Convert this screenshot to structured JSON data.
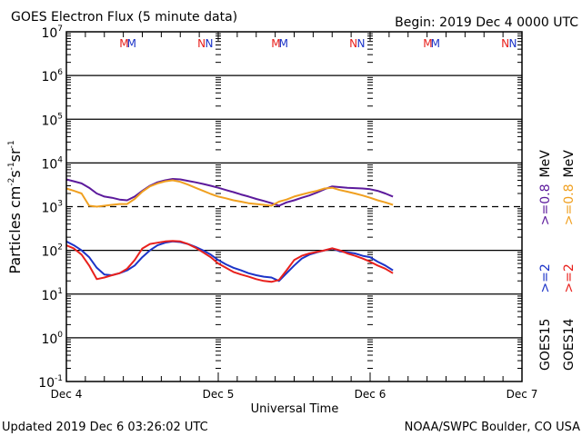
{
  "chart_data": {
    "type": "line",
    "title": "GOES Electron Flux (5 minute data)",
    "begin_label": "Begin: 2019 Dec 4 0000 UTC",
    "xlabel": "Universal Time",
    "ylabel": "Particles cm⁻²s⁻¹sr⁻¹",
    "ylabel_parts": {
      "base": "Particles cm",
      "e1": "-2",
      "s": "s",
      "e2": "-1",
      "sr": "sr",
      "e3": "-1"
    },
    "yscale": "log",
    "ylim": [
      0.1,
      10000000
    ],
    "xlim_days": [
      0,
      3
    ],
    "y_ticks": [
      {
        "base": "10",
        "exp": "7",
        "value": 10000000
      },
      {
        "base": "10",
        "exp": "6",
        "value": 1000000
      },
      {
        "base": "10",
        "exp": "5",
        "value": 100000
      },
      {
        "base": "10",
        "exp": "4",
        "value": 10000
      },
      {
        "base": "10",
        "exp": "3",
        "value": 1000
      },
      {
        "base": "10",
        "exp": "2",
        "value": 100
      },
      {
        "base": "10",
        "exp": "1",
        "value": 10
      },
      {
        "base": "10",
        "exp": "0",
        "value": 1
      },
      {
        "base": "10",
        "exp": "-1",
        "value": 0.1
      }
    ],
    "x_ticks": [
      {
        "label": "Dec 4",
        "day": 0
      },
      {
        "label": "Dec 5",
        "day": 1
      },
      {
        "label": "Dec 6",
        "day": 2
      },
      {
        "label": "Dec 7",
        "day": 3
      }
    ],
    "threshold_dashed": 1000,
    "grid_solid": [
      10000,
      100,
      10,
      1
    ],
    "markers": [
      {
        "label": "M",
        "day": 0.38,
        "color": "#e8201c"
      },
      {
        "label": "M",
        "day": 0.43,
        "color": "#1c34c8"
      },
      {
        "label": "N",
        "day": 0.89,
        "color": "#e8201c"
      },
      {
        "label": "N",
        "day": 0.94,
        "color": "#1c34c8"
      },
      {
        "label": "M",
        "day": 1.38,
        "color": "#e8201c"
      },
      {
        "label": "M",
        "day": 1.43,
        "color": "#1c34c8"
      },
      {
        "label": "N",
        "day": 1.89,
        "color": "#e8201c"
      },
      {
        "label": "N",
        "day": 1.94,
        "color": "#1c34c8"
      },
      {
        "label": "M",
        "day": 2.38,
        "color": "#e8201c"
      },
      {
        "label": "M",
        "day": 2.43,
        "color": "#1c34c8"
      },
      {
        "label": "N",
        "day": 2.89,
        "color": "#e8201c"
      },
      {
        "label": "N",
        "day": 2.94,
        "color": "#1c34c8"
      }
    ],
    "series": [
      {
        "name": "GOES15 >=0.8 MeV",
        "color": "#5c1a9c",
        "x": [
          0,
          0.05,
          0.1,
          0.15,
          0.2,
          0.25,
          0.3,
          0.35,
          0.4,
          0.45,
          0.5,
          0.55,
          0.6,
          0.65,
          0.7,
          0.75,
          0.8,
          0.85,
          0.9,
          0.95,
          1.0,
          1.05,
          1.1,
          1.15,
          1.2,
          1.25,
          1.3,
          1.35,
          1.4,
          1.45,
          1.5,
          1.55,
          1.6,
          1.65,
          1.7,
          1.75,
          1.8,
          1.85,
          1.9,
          1.95,
          2.0,
          2.05,
          2.1,
          2.15
        ],
        "y": [
          4200,
          3800,
          3400,
          2700,
          2000,
          1700,
          1600,
          1450,
          1400,
          1700,
          2300,
          3000,
          3600,
          4000,
          4300,
          4200,
          3900,
          3600,
          3300,
          3000,
          2700,
          2400,
          2150,
          1900,
          1700,
          1500,
          1350,
          1200,
          1050,
          1250,
          1400,
          1600,
          1800,
          2100,
          2500,
          2900,
          2800,
          2700,
          2650,
          2600,
          2500,
          2300,
          2000,
          1700
        ]
      },
      {
        "name": "GOES14 >=0.8 MeV",
        "color": "#f0a020",
        "x": [
          0,
          0.05,
          0.1,
          0.15,
          0.2,
          0.25,
          0.3,
          0.35,
          0.4,
          0.45,
          0.5,
          0.55,
          0.6,
          0.65,
          0.7,
          0.75,
          0.8,
          0.85,
          0.9,
          0.95,
          1.0,
          1.05,
          1.1,
          1.15,
          1.2,
          1.25,
          1.3,
          1.35,
          1.4,
          1.45,
          1.5,
          1.55,
          1.6,
          1.65,
          1.7,
          1.75,
          1.8,
          1.85,
          1.9,
          1.95,
          2.0,
          2.05,
          2.1,
          2.15
        ],
        "y": [
          2600,
          2300,
          2000,
          1050,
          1000,
          1050,
          1100,
          1150,
          1150,
          1500,
          2200,
          2900,
          3400,
          3800,
          4000,
          3700,
          3200,
          2700,
          2300,
          1950,
          1700,
          1550,
          1400,
          1300,
          1200,
          1150,
          1100,
          1050,
          1300,
          1450,
          1700,
          1900,
          2100,
          2300,
          2600,
          2700,
          2400,
          2200,
          2000,
          1800,
          1600,
          1400,
          1250,
          1100
        ]
      },
      {
        "name": "GOES15 >=2 MeV",
        "color": "#1c34c8",
        "x": [
          0,
          0.05,
          0.1,
          0.15,
          0.2,
          0.25,
          0.3,
          0.35,
          0.4,
          0.45,
          0.5,
          0.55,
          0.6,
          0.65,
          0.7,
          0.75,
          0.8,
          0.85,
          0.9,
          0.95,
          1.0,
          1.05,
          1.1,
          1.15,
          1.2,
          1.25,
          1.3,
          1.35,
          1.4,
          1.45,
          1.5,
          1.55,
          1.6,
          1.65,
          1.7,
          1.75,
          1.8,
          1.85,
          1.9,
          1.95,
          2.0,
          2.05,
          2.1,
          2.15
        ],
        "y": [
          160,
          130,
          100,
          70,
          40,
          28,
          27,
          30,
          35,
          45,
          70,
          100,
          130,
          150,
          160,
          155,
          140,
          120,
          100,
          80,
          60,
          48,
          40,
          35,
          30,
          27,
          25,
          24,
          20,
          30,
          45,
          65,
          80,
          90,
          100,
          110,
          95,
          90,
          85,
          75,
          70,
          55,
          45,
          35
        ]
      },
      {
        "name": "GOES14 >=2 MeV",
        "color": "#e8201c",
        "x": [
          0,
          0.05,
          0.1,
          0.15,
          0.2,
          0.25,
          0.3,
          0.35,
          0.4,
          0.45,
          0.5,
          0.55,
          0.6,
          0.65,
          0.7,
          0.75,
          0.8,
          0.85,
          0.9,
          0.95,
          1.0,
          1.05,
          1.1,
          1.15,
          1.2,
          1.25,
          1.3,
          1.35,
          1.4,
          1.45,
          1.5,
          1.55,
          1.6,
          1.65,
          1.7,
          1.75,
          1.8,
          1.85,
          1.9,
          1.95,
          2.0,
          2.05,
          2.1,
          2.15
        ],
        "y": [
          130,
          110,
          80,
          45,
          22,
          24,
          27,
          30,
          38,
          60,
          110,
          140,
          150,
          160,
          165,
          160,
          140,
          115,
          90,
          70,
          50,
          40,
          32,
          28,
          25,
          22,
          20,
          19,
          21,
          35,
          60,
          75,
          85,
          92,
          100,
          112,
          100,
          85,
          75,
          65,
          55,
          45,
          38,
          30
        ]
      }
    ],
    "legend": {
      "position": "right",
      "col1": [
        {
          "text": "GOES15",
          "color": "#000000"
        },
        {
          "text": ">=2",
          "color": "#1c34c8"
        },
        {
          "text": ">=0.8",
          "color": "#5c1a9c"
        },
        {
          "text": "MeV",
          "color": "#000000"
        }
      ],
      "col2": [
        {
          "text": "GOES14",
          "color": "#000000"
        },
        {
          "text": ">=2",
          "color": "#e8201c"
        },
        {
          "text": ">=0.8",
          "color": "#f0a020"
        },
        {
          "text": "MeV",
          "color": "#000000"
        }
      ]
    }
  },
  "footer": {
    "updated": "Updated 2019 Dec  6 03:26:02 UTC",
    "credit": "NOAA/SWPC Boulder, CO USA"
  }
}
